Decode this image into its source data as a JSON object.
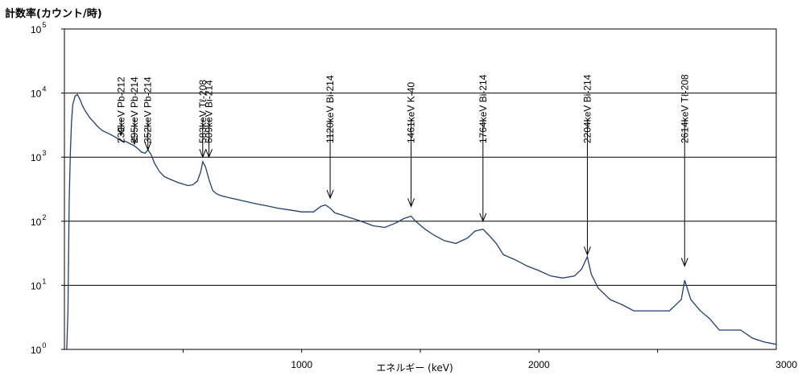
{
  "chart_data": {
    "type": "line",
    "title": "",
    "ylabel": "計数率(カウント/時)",
    "xlabel": "エネルギー (keV)",
    "xlim": [
      0,
      3000
    ],
    "ylim": [
      1,
      100000
    ],
    "y_scale": "log",
    "grid": "horizontal",
    "x_tick_labels": [
      "1000",
      "2000",
      "3000"
    ],
    "y_tick_labels": [
      {
        "base": "10",
        "exp": "0"
      },
      {
        "base": "10",
        "exp": "1"
      },
      {
        "base": "10",
        "exp": "2"
      },
      {
        "base": "10",
        "exp": "3"
      },
      {
        "base": "10",
        "exp": "4"
      },
      {
        "base": "10",
        "exp": "5"
      }
    ],
    "series": [
      {
        "color": "#1f3f73",
        "x": [
          10,
          15,
          20,
          25,
          30,
          35,
          45,
          55,
          65,
          75,
          85,
          95,
          110,
          125,
          140,
          160,
          180,
          200,
          220,
          239,
          260,
          280,
          295,
          310,
          325,
          340,
          352,
          365,
          380,
          400,
          420,
          440,
          460,
          480,
          500,
          520,
          540,
          560,
          575,
          583,
          595,
          609,
          625,
          640,
          660,
          680,
          700,
          750,
          800,
          850,
          900,
          950,
          1000,
          1050,
          1080,
          1100,
          1120,
          1140,
          1170,
          1200,
          1250,
          1300,
          1350,
          1400,
          1430,
          1461,
          1480,
          1520,
          1560,
          1600,
          1650,
          1700,
          1730,
          1764,
          1790,
          1820,
          1850,
          1900,
          1950,
          2000,
          2050,
          2100,
          2150,
          2180,
          2204,
          2220,
          2250,
          2300,
          2350,
          2400,
          2450,
          2500,
          2550,
          2600,
          2614,
          2640,
          2680,
          2720,
          2760,
          2800,
          2850,
          2900,
          2950,
          3000
        ],
        "y": [
          1,
          4,
          200,
          1200,
          3500,
          6500,
          9000,
          9500,
          8000,
          6500,
          5500,
          4800,
          4000,
          3500,
          3000,
          2600,
          2400,
          2200,
          2000,
          1800,
          1750,
          1600,
          1500,
          1350,
          1200,
          1150,
          1300,
          1100,
          800,
          600,
          500,
          460,
          430,
          400,
          380,
          360,
          370,
          420,
          600,
          850,
          700,
          450,
          300,
          270,
          250,
          240,
          230,
          210,
          190,
          175,
          160,
          150,
          140,
          140,
          170,
          180,
          160,
          135,
          125,
          115,
          100,
          85,
          80,
          95,
          110,
          120,
          100,
          75,
          60,
          50,
          45,
          55,
          70,
          75,
          60,
          45,
          30,
          25,
          20,
          17,
          14,
          13,
          14,
          18,
          28,
          15,
          9,
          6,
          5,
          4,
          4,
          4,
          4,
          6,
          12,
          6,
          4,
          3,
          2,
          2,
          2,
          1.5,
          1.3,
          1.2
        ]
      }
    ],
    "annotations": [
      {
        "energy": 239,
        "label": "239keV Pb-212",
        "arrow_to": 2200
      },
      {
        "energy": 295,
        "label": "295keV Pb-214",
        "arrow_to": 1600
      },
      {
        "energy": 352,
        "label": "352keV Pb-214",
        "arrow_to": 1300
      },
      {
        "energy": 583,
        "label": "583keV Tℓ-208",
        "arrow_to": 1000
      },
      {
        "energy": 609,
        "label": "609keV Bi-214",
        "arrow_to": 1000
      },
      {
        "energy": 1120,
        "label": "1120keV  Bi-214",
        "arrow_to": 230
      },
      {
        "energy": 1461,
        "label": "1461keV K-40",
        "arrow_to": 170
      },
      {
        "energy": 1764,
        "label": "1764keV Bi-214",
        "arrow_to": 100
      },
      {
        "energy": 2204,
        "label": "2204keV Bi-214",
        "arrow_to": 30
      },
      {
        "energy": 2614,
        "label": "2614keV Tℓ-208",
        "arrow_to": 20
      }
    ]
  }
}
